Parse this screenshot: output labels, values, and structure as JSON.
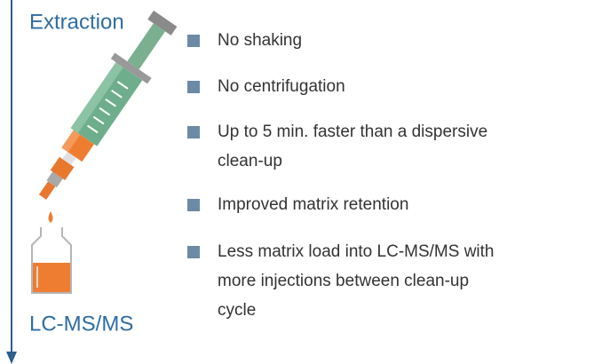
{
  "labels": {
    "start": "Extraction",
    "end": "LC-MS/MS"
  },
  "bullets": [
    [
      "No shaking"
    ],
    [
      "No centrifugation"
    ],
    [
      "Up to 5 min. faster than a dispersive",
      "clean-up"
    ],
    [
      "Improved matrix retention"
    ],
    [
      "Less matrix load into LC-MS/MS with",
      "more injections between clean-up",
      "cycle"
    ]
  ]
}
